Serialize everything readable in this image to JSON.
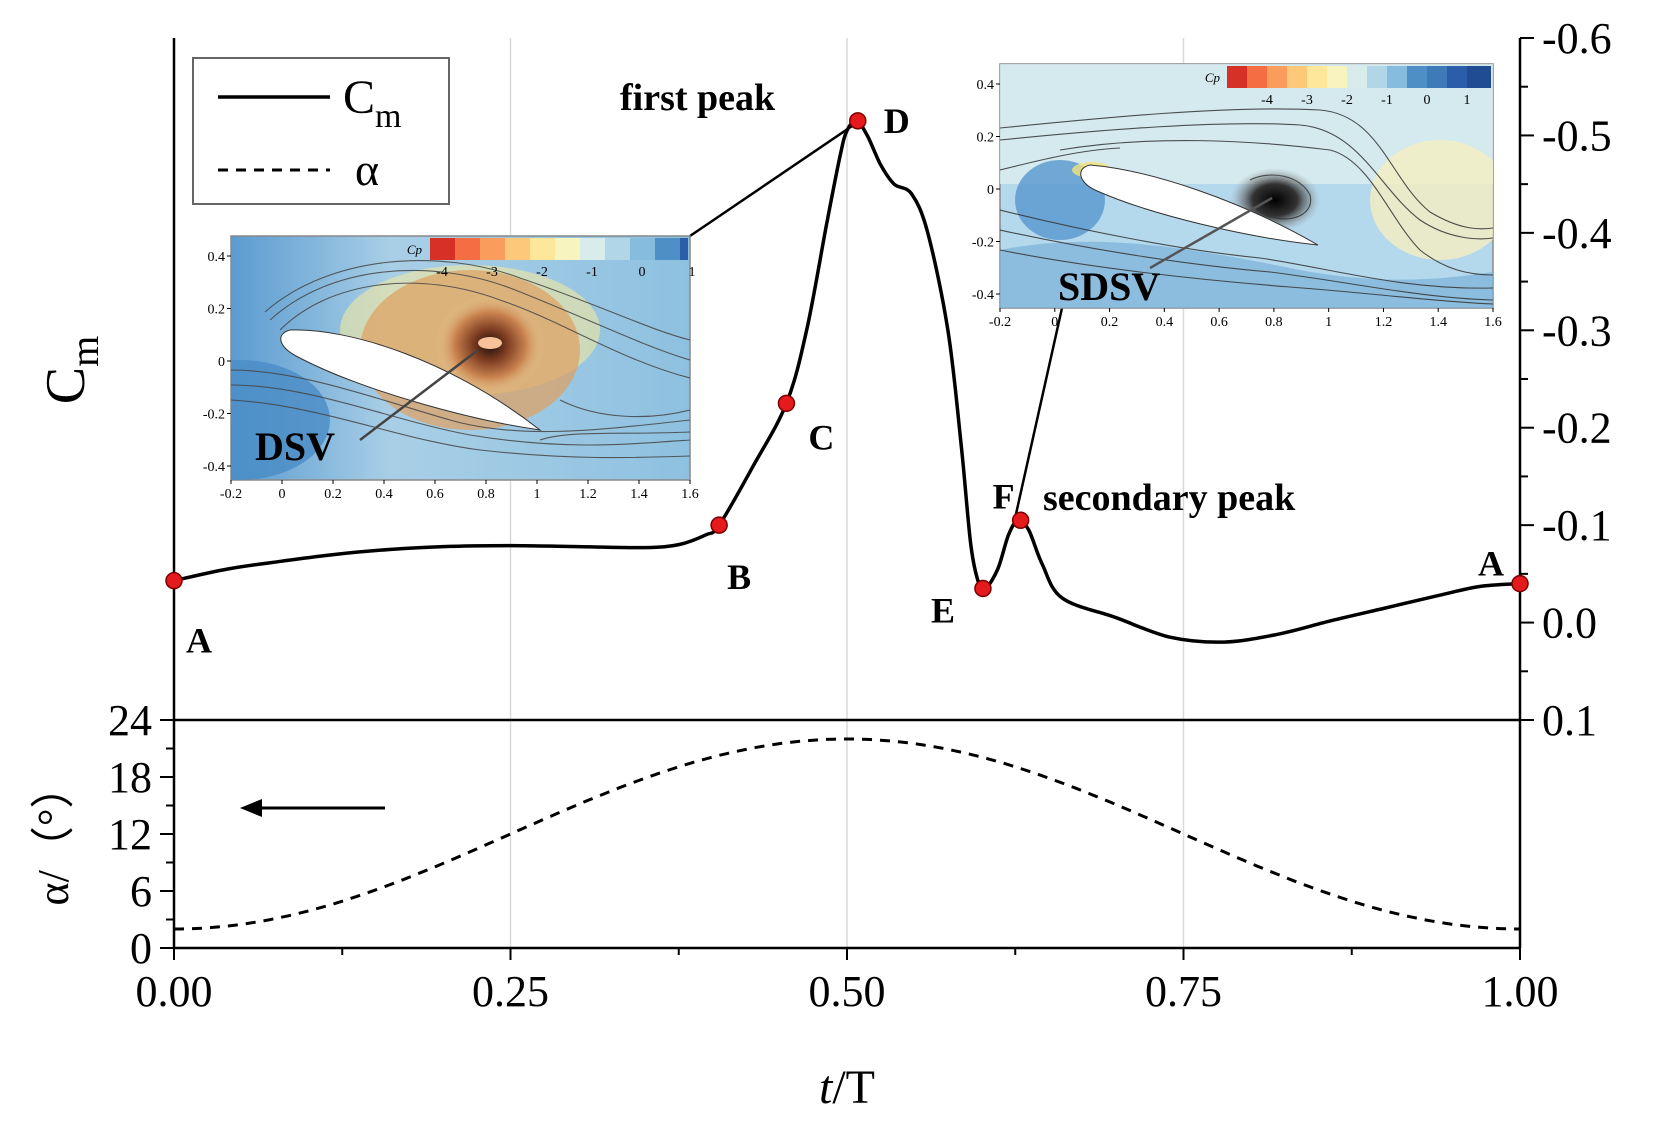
{
  "chart_data": {
    "type": "line",
    "xlabel_italic": "t",
    "xlabel_rest": "/T",
    "x_ticks": [
      "0.00",
      "0.25",
      "0.50",
      "0.75",
      "1.00"
    ],
    "xlim": [
      0,
      1
    ],
    "top_panel": {
      "ylabel_main": "C",
      "ylabel_sub": "m",
      "ylim": [
        0.1,
        -0.6
      ],
      "y_ticks": [
        "-0.6",
        "-0.5",
        "-0.4",
        "-0.3",
        "-0.2",
        "-0.1",
        "0.0",
        "0.1"
      ],
      "y_axis_side": "right",
      "series": [
        {
          "name": "C_m",
          "style": "solid",
          "points": [
            [
              0,
              -0.043
            ],
            [
              0.04,
              -0.055
            ],
            [
              0.08,
              -0.063
            ],
            [
              0.12,
              -0.07
            ],
            [
              0.16,
              -0.075
            ],
            [
              0.2,
              -0.078
            ],
            [
              0.25,
              -0.079
            ],
            [
              0.3,
              -0.078
            ],
            [
              0.35,
              -0.077
            ],
            [
              0.375,
              -0.08
            ],
            [
              0.395,
              -0.09
            ],
            [
              0.405,
              -0.1
            ],
            [
              0.43,
              -0.16
            ],
            [
              0.455,
              -0.225
            ],
            [
              0.47,
              -0.3
            ],
            [
              0.485,
              -0.41
            ],
            [
              0.495,
              -0.48
            ],
            [
              0.5,
              -0.505
            ],
            [
              0.507,
              -0.515
            ],
            [
              0.515,
              -0.5
            ],
            [
              0.525,
              -0.47
            ],
            [
              0.535,
              -0.45
            ],
            [
              0.548,
              -0.44
            ],
            [
              0.56,
              -0.4
            ],
            [
              0.575,
              -0.3
            ],
            [
              0.585,
              -0.18
            ],
            [
              0.592,
              -0.08
            ],
            [
              0.598,
              -0.04
            ],
            [
              0.603,
              -0.035
            ],
            [
              0.612,
              -0.055
            ],
            [
              0.62,
              -0.09
            ],
            [
              0.627,
              -0.105
            ],
            [
              0.635,
              -0.095
            ],
            [
              0.645,
              -0.06
            ],
            [
              0.66,
              -0.025
            ],
            [
              0.7,
              -0.005
            ],
            [
              0.74,
              0.015
            ],
            [
              0.78,
              0.02
            ],
            [
              0.82,
              0.012
            ],
            [
              0.86,
              -0.002
            ],
            [
              0.9,
              -0.015
            ],
            [
              0.94,
              -0.028
            ],
            [
              0.97,
              -0.037
            ],
            [
              1.0,
              -0.04
            ]
          ]
        }
      ],
      "markers": [
        {
          "label": "A",
          "x": 0.0,
          "y": -0.043
        },
        {
          "label": "B",
          "x": 0.405,
          "y": -0.1
        },
        {
          "label": "C",
          "x": 0.455,
          "y": -0.225
        },
        {
          "label": "D",
          "x": 0.508,
          "y": -0.515
        },
        {
          "label": "E",
          "x": 0.601,
          "y": -0.035
        },
        {
          "label": "F",
          "x": 0.629,
          "y": -0.105
        },
        {
          "label": "A",
          "x": 1.0,
          "y": -0.04
        }
      ],
      "annotations": [
        "first peak",
        "secondary peak"
      ]
    },
    "bottom_panel": {
      "ylabel": "α/（°）",
      "ylim": [
        0,
        24
      ],
      "y_ticks": [
        "0",
        "6",
        "12",
        "18",
        "24"
      ],
      "series": [
        {
          "name": "α",
          "style": "dashed",
          "mean": 12,
          "amplitude": 10,
          "description": "α = 12 - 10·cos(2π t/T)"
        }
      ]
    },
    "legend": [
      {
        "label": "C",
        "sub": "m",
        "style": "solid"
      },
      {
        "label": "α",
        "style": "dashed"
      }
    ],
    "insets": [
      {
        "name": "DSV",
        "colorbar_label": "Cp",
        "colorbar_ticks": [
          "-4",
          "-3",
          "-2",
          "-1",
          "0",
          "1"
        ],
        "x_ticks": [
          "-0.2",
          "0",
          "0.2",
          "0.4",
          "0.6",
          "0.8",
          "1",
          "1.2",
          "1.4",
          "1.6"
        ],
        "y_ticks": [
          "0.4",
          "0.2",
          "0",
          "-0.2",
          "-0.4"
        ]
      },
      {
        "name": "SDSV",
        "colorbar_label": "Cp",
        "colorbar_ticks": [
          "-4",
          "-3",
          "-2",
          "-1",
          "0",
          "1"
        ],
        "x_ticks": [
          "-0.2",
          "0",
          "0.2",
          "0.4",
          "0.6",
          "0.8",
          "1",
          "1.2",
          "1.4",
          "1.6"
        ],
        "y_ticks": [
          "0.4",
          "0.2",
          "0",
          "-0.2",
          "-0.4"
        ]
      }
    ]
  }
}
